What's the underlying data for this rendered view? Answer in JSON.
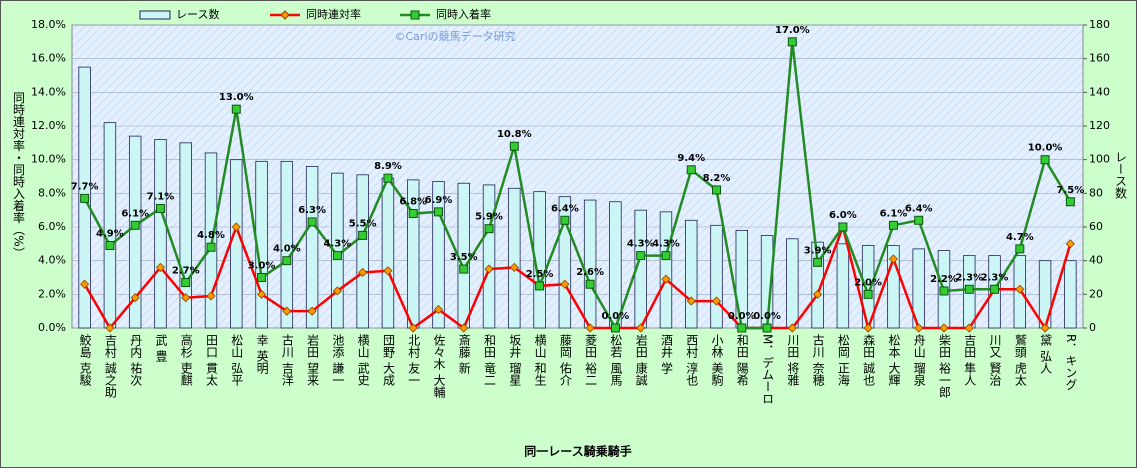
{
  "chart_data": {
    "type": "combo",
    "categories": [
      "鮫島 克駿",
      "吉村 誠之助",
      "丹内 祐次",
      "武 豊",
      "高杉 吏麒",
      "田口 貫太",
      "松山 弘平",
      "幸 英明",
      "古川 吉洋",
      "岩田 望来",
      "池添 謙一",
      "横山 武史",
      "団野 大成",
      "北村 友一",
      "佐々木 大輔",
      "斎藤 新",
      "和田 竜二",
      "坂井 瑠星",
      "横山 和生",
      "藤岡 佑介",
      "菱田 裕二",
      "松若 風馬",
      "岩田 康誠",
      "酒井 学",
      "西村 淳也",
      "小林 美駒",
      "和田 陽希",
      "M．デムーロ",
      "川田 将雅",
      "古川 奈穂",
      "松岡 正海",
      "森田 誠也",
      "松本 大輝",
      "舟山 瑠泉",
      "柴田 裕一郎",
      "吉田 隼人",
      "川又 賢治",
      "鷲頭 虎太",
      "黛 弘人",
      "R．キング"
    ],
    "series": [
      {
        "name": "レース数",
        "type": "bar",
        "axis": "y2",
        "color": "#ccf5f5",
        "values": [
          155,
          122,
          114,
          112,
          110,
          104,
          100,
          99,
          99,
          96,
          92,
          91,
          89,
          88,
          87,
          86,
          85,
          83,
          81,
          78,
          76,
          75,
          70,
          69,
          64,
          61,
          58,
          55,
          53,
          51,
          50,
          49,
          49,
          47,
          46,
          43,
          43,
          43,
          40,
          40
        ]
      },
      {
        "name": "同時連対率",
        "type": "line",
        "color": "#ff0000",
        "marker": "diamond",
        "marker_color": "#ff9900",
        "values": [
          2.6,
          0,
          1.8,
          3.6,
          1.8,
          1.9,
          6.0,
          2.0,
          1.0,
          1.0,
          2.2,
          3.3,
          3.4,
          0,
          1.1,
          0,
          3.5,
          3.6,
          2.5,
          2.6,
          0,
          0,
          0,
          2.9,
          1.6,
          1.6,
          0,
          0,
          0,
          2.0,
          6.0,
          0,
          4.1,
          0,
          0,
          0,
          2.3,
          2.3,
          0,
          5.0
        ]
      },
      {
        "name": "同時入着率",
        "type": "line",
        "color": "#228b22",
        "marker": "square",
        "marker_color": "#33cc33",
        "values": [
          7.7,
          4.9,
          6.1,
          7.1,
          2.7,
          4.8,
          13.0,
          3.0,
          4.0,
          6.3,
          4.3,
          5.5,
          8.9,
          6.8,
          6.9,
          3.5,
          5.9,
          10.8,
          2.5,
          6.4,
          2.6,
          0.0,
          4.3,
          4.3,
          9.4,
          8.2,
          0.0,
          0.0,
          17.0,
          3.9,
          6.0,
          2.0,
          6.1,
          6.4,
          2.2,
          2.3,
          2.3,
          4.7,
          10.0,
          7.5
        ],
        "value_labels": [
          "7.7%",
          "4.9%",
          "6.1%",
          "7.1%",
          "2.7%",
          "4.8%",
          "13.0%",
          "3.0%",
          "4.0%",
          "6.3%",
          "4.3%",
          "5.5%",
          "8.9%",
          "6.8%",
          "6.9%",
          "3.5%",
          "5.9%",
          "10.8%",
          "2.5%",
          "6.4%",
          "2.6%",
          "0.0%",
          "4.3%",
          "4.3%",
          "9.4%",
          "8.2%",
          "0.0%",
          "0.0%",
          "17.0%",
          "3.9%",
          "6.0%",
          "2.0%",
          "6.1%",
          "6.4%",
          "2.2%",
          "2.3%",
          "2.3%",
          "4.7%",
          "10.0%",
          "7.5%"
        ]
      }
    ],
    "ylim": [
      0,
      18
    ],
    "yticks": [
      {
        "value": 0,
        "label": "0.0%"
      },
      {
        "value": 2,
        "label": "2.0%"
      },
      {
        "value": 4,
        "label": "4.0%"
      },
      {
        "value": 6,
        "label": "6.0%"
      },
      {
        "value": 8,
        "label": "8.0%"
      },
      {
        "value": 10,
        "label": "10.0%"
      },
      {
        "value": 12,
        "label": "12.0%"
      },
      {
        "value": 14,
        "label": "14.0%"
      },
      {
        "value": 16,
        "label": "16.0%"
      },
      {
        "value": 18,
        "label": "18.0%"
      }
    ],
    "y2lim": [
      0,
      180
    ],
    "y2ticks": [
      0,
      20,
      40,
      60,
      80,
      100,
      120,
      140,
      160,
      180
    ],
    "y_label": "同時連対率・同時入着率（%）",
    "y2_label": "レース数",
    "x_label": "同一レース騎乗騎手",
    "watermark": "©Cariの競馬データ研究",
    "legend": "top",
    "grid": true
  }
}
